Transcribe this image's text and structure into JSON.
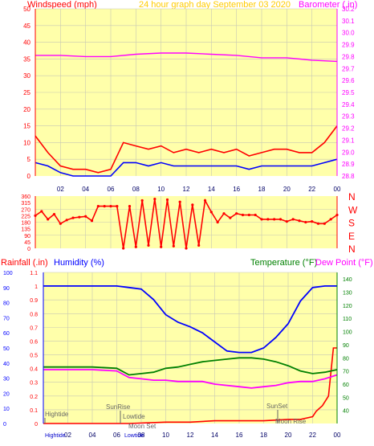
{
  "colors": {
    "background": "#ffffff",
    "plot_bg": "#ffffaa",
    "grid": "#c8c8b4",
    "wind_axis": "#ff0000",
    "baro_axis": "#ff00ff",
    "direction": "#ff0000",
    "humidity": "#0000ff",
    "temperature": "#008000",
    "dewpoint": "#ff00ff",
    "rain": "#ff0000",
    "title": "#ffcc00",
    "annotation": "#666666"
  },
  "header": {
    "wind_label": "Windspeed (mph)",
    "title": "24 hour graph day   September 03 2020",
    "baro_label": "Barometer (.in)"
  },
  "bottom_header": {
    "rain_label": "Rainfall (.in)",
    "humidity_label": "Humidity (%)",
    "temp_label": "Temperature (°F)",
    "dew_label": "Dew Point (°F)"
  },
  "x_ticks": [
    "02",
    "04",
    "06",
    "08",
    "10",
    "12",
    "14",
    "16",
    "18",
    "20",
    "22",
    "00"
  ],
  "annotations": {
    "hightide_top": "Hightide",
    "hightide_bottom": "Hightide",
    "sunrise": "SunRise",
    "lowtide_top": "Lowtide",
    "lowtide_bottom": "Lowtide",
    "moonset": "Moon Set",
    "sunset": "SunSet",
    "moonrise": "Moon Rise"
  },
  "chart_data": [
    {
      "type": "line",
      "x_range": [
        0,
        24
      ],
      "y_left": {
        "label": "Windspeed (mph)",
        "range": [
          0,
          50
        ],
        "ticks": [
          0,
          5,
          10,
          15,
          20,
          25,
          30,
          35,
          40,
          45,
          50
        ]
      },
      "y_right": {
        "label": "Barometer (.in)",
        "range": [
          28.8,
          30.2
        ],
        "ticks": [
          28.8,
          28.9,
          29.0,
          29.1,
          29.2,
          29.3,
          29.4,
          29.5,
          29.6,
          29.7,
          29.8,
          29.9,
          30.0,
          30.1,
          30.2
        ]
      },
      "series": [
        {
          "name": "Barometer",
          "axis": "right",
          "x": [
            0,
            2,
            4,
            6,
            8,
            10,
            12,
            14,
            16,
            18,
            20,
            22,
            24
          ],
          "values": [
            29.81,
            29.81,
            29.8,
            29.8,
            29.82,
            29.83,
            29.83,
            29.82,
            29.81,
            29.79,
            29.79,
            29.77,
            29.76
          ]
        },
        {
          "name": "Wind gust",
          "axis": "left",
          "x": [
            0,
            1,
            2,
            3,
            4,
            5,
            6,
            7,
            8,
            9,
            10,
            11,
            12,
            13,
            14,
            15,
            16,
            17,
            18,
            19,
            20,
            21,
            22,
            23,
            24
          ],
          "values": [
            12,
            7,
            3,
            2,
            2,
            1,
            2,
            10,
            9,
            8,
            9,
            7,
            8,
            7,
            8,
            7,
            8,
            6,
            7,
            8,
            8,
            7,
            7,
            10,
            15
          ]
        },
        {
          "name": "Wind average",
          "axis": "left",
          "x": [
            0,
            1,
            2,
            3,
            4,
            5,
            6,
            7,
            8,
            9,
            10,
            11,
            12,
            13,
            14,
            15,
            16,
            17,
            18,
            19,
            20,
            21,
            22,
            23,
            24
          ],
          "values": [
            4,
            3,
            1,
            0,
            0,
            0,
            0,
            4,
            4,
            3,
            4,
            3,
            3,
            3,
            3,
            3,
            3,
            2,
            3,
            3,
            3,
            3,
            3,
            4,
            5
          ]
        }
      ]
    },
    {
      "type": "scatter",
      "x_range": [
        0,
        24
      ],
      "y_left": {
        "range": [
          0,
          360
        ],
        "ticks": [
          0,
          45,
          90,
          135,
          180,
          225,
          270,
          315,
          360
        ]
      },
      "y_right": {
        "ticks": [
          "N",
          "W",
          "S",
          "E",
          "N"
        ]
      },
      "series": [
        {
          "name": "Wind direction",
          "x": [
            0,
            0.5,
            1,
            1.5,
            2,
            2.5,
            3,
            3.5,
            4,
            4.5,
            5,
            5.5,
            6,
            6.5,
            7,
            7.5,
            8,
            8.5,
            9,
            9.5,
            10,
            10.5,
            11,
            11.5,
            12,
            12.5,
            13,
            13.5,
            14,
            14.5,
            15,
            15.5,
            16,
            16.5,
            17,
            17.5,
            18,
            18.5,
            19,
            19.5,
            20,
            20.5,
            21,
            21.5,
            22,
            22.5,
            23,
            23.5,
            24
          ],
          "values": [
            225,
            255,
            200,
            235,
            170,
            195,
            210,
            215,
            220,
            190,
            290,
            290,
            290,
            290,
            0,
            290,
            10,
            330,
            20,
            340,
            10,
            335,
            15,
            320,
            0,
            300,
            20,
            330,
            250,
            180,
            240,
            210,
            240,
            230,
            230,
            230,
            200,
            200,
            200,
            200,
            185,
            200,
            190,
            180,
            185,
            170,
            170,
            200,
            230
          ]
        }
      ]
    },
    {
      "type": "line",
      "x_range": [
        0,
        24
      ],
      "y_outer_left": {
        "label": "Humidity (%)",
        "range": [
          0,
          100
        ],
        "ticks": [
          0,
          10,
          20,
          30,
          40,
          50,
          60,
          70,
          80,
          90,
          100
        ]
      },
      "y_inner_left": {
        "label": "Rainfall (.in)",
        "range": [
          0,
          1.1
        ],
        "ticks": [
          0,
          0.1,
          0.2,
          0.3,
          0.4,
          0.5,
          0.6,
          0.7,
          0.8,
          0.9,
          1,
          1.1
        ]
      },
      "y_right": {
        "label": "Temperature (°F)",
        "range": [
          30,
          145
        ],
        "ticks": [
          40,
          50,
          60,
          70,
          80,
          90,
          100,
          110,
          120,
          130,
          140
        ]
      },
      "series": [
        {
          "name": "Humidity",
          "axis": "outer_left",
          "x": [
            0,
            2,
            4,
            6,
            7,
            8,
            9,
            10,
            11,
            12,
            13,
            14,
            15,
            16,
            17,
            18,
            19,
            20,
            21,
            22,
            23,
            24
          ],
          "values": [
            91,
            91,
            91,
            91,
            90,
            89,
            82,
            72,
            67,
            64,
            60,
            54,
            48,
            47,
            47,
            50,
            57,
            66,
            81,
            90,
            91,
            91
          ]
        },
        {
          "name": "Temperature",
          "axis": "right",
          "x": [
            0,
            2,
            4,
            6,
            7,
            8,
            9,
            10,
            11,
            12,
            13,
            14,
            15,
            16,
            17,
            18,
            19,
            20,
            21,
            22,
            23,
            24
          ],
          "values": [
            73,
            73,
            73,
            72,
            67,
            68,
            69,
            72,
            73,
            75,
            77,
            78,
            79,
            80,
            80,
            79,
            77,
            74,
            70,
            68,
            69,
            71
          ]
        },
        {
          "name": "Dew Point",
          "axis": "right",
          "x": [
            0,
            2,
            4,
            6,
            7,
            8,
            9,
            10,
            11,
            12,
            13,
            14,
            15,
            16,
            17,
            18,
            19,
            20,
            21,
            22,
            23,
            24
          ],
          "values": [
            71,
            71,
            71,
            70,
            65,
            64,
            63,
            63,
            62,
            62,
            62,
            60,
            59,
            58,
            57,
            58,
            59,
            61,
            62,
            62,
            64,
            67
          ]
        },
        {
          "name": "Rainfall",
          "axis": "inner_left",
          "x": [
            0,
            7,
            10,
            12,
            14,
            16,
            18,
            20,
            21,
            22,
            22.3,
            22.8,
            23.3,
            23.7,
            24
          ],
          "values": [
            0,
            0,
            0.01,
            0.01,
            0.02,
            0.02,
            0.02,
            0.03,
            0.03,
            0.05,
            0.09,
            0.13,
            0.2,
            0.55,
            0.55
          ]
        }
      ]
    }
  ]
}
